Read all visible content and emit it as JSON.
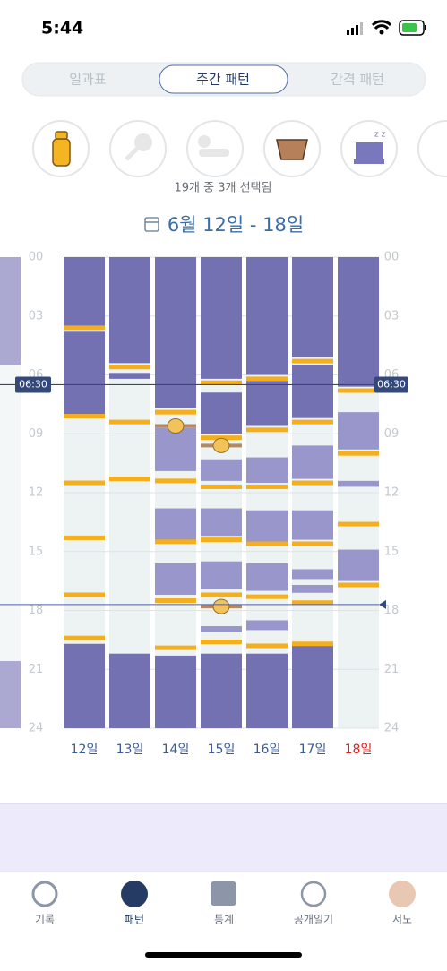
{
  "status_bar": {
    "time": "5:44"
  },
  "tabs": [
    "일과표",
    "주간 패턴",
    "간격 패턴"
  ],
  "active_tab": 1,
  "selection_text": "19개 중 3개 선택됨",
  "date_range": "6월 12일 - 18일",
  "chart": {
    "ylim": [
      0,
      24
    ],
    "yticks": [
      {
        "value": 0,
        "label": "00"
      },
      {
        "value": 3,
        "label": "03"
      },
      {
        "value": 6,
        "label": "06"
      },
      {
        "value": 9,
        "label": "09"
      },
      {
        "value": 12,
        "label": "12"
      },
      {
        "value": 15,
        "label": "15"
      },
      {
        "value": 18,
        "label": "18"
      },
      {
        "value": 21,
        "label": "21"
      },
      {
        "value": 24,
        "label": "24"
      }
    ],
    "marker": {
      "value": 6.5,
      "label": "06:30"
    },
    "now": 17.7,
    "colors": {
      "night": "#7471b3",
      "nap": "#9896cb",
      "feed": "#f5ae1c",
      "diaper": "#b48a66",
      "column": "#edf2f3"
    },
    "days": [
      {
        "label": "12일",
        "highlight": false,
        "night": [
          [
            0,
            3.5
          ],
          [
            3.8,
            8.0
          ],
          [
            19.7,
            24
          ]
        ],
        "naps": [],
        "feeds": [
          3.6,
          8.1,
          11.5,
          14.3,
          17.2,
          19.4
        ],
        "diapers": []
      },
      {
        "label": "13일",
        "highlight": false,
        "night": [
          [
            0,
            5.4
          ],
          [
            5.9,
            6.2
          ],
          [
            20.2,
            24
          ]
        ],
        "naps": [],
        "feeds": [
          5.6,
          8.4,
          11.3
        ],
        "diapers": []
      },
      {
        "label": "14일",
        "highlight": false,
        "night": [
          [
            0,
            7.7
          ],
          [
            20.3,
            24
          ]
        ],
        "naps": [
          [
            8.7,
            10.9
          ],
          [
            12.8,
            14.6
          ],
          [
            15.6,
            17.2
          ]
        ],
        "feeds": [
          7.9,
          11.4,
          14.5,
          17.5,
          19.9
        ],
        "diapers": [
          8.6
        ]
      },
      {
        "label": "15일",
        "highlight": false,
        "night": [
          [
            0,
            6.2
          ],
          [
            6.9,
            9.0
          ],
          [
            20.2,
            24
          ]
        ],
        "naps": [
          [
            10.3,
            11.4
          ],
          [
            12.8,
            14.2
          ],
          [
            15.5,
            16.9
          ],
          [
            18.8,
            19.1
          ]
        ],
        "feeds": [
          6.4,
          9.2,
          11.7,
          14.4,
          17.2,
          19.6
        ],
        "diapers": [
          9.6,
          17.8
        ]
      },
      {
        "label": "16일",
        "highlight": false,
        "night": [
          [
            0,
            6.0
          ],
          [
            6.3,
            8.6
          ],
          [
            20.2,
            24
          ]
        ],
        "naps": [
          [
            10.2,
            11.5
          ],
          [
            12.9,
            14.5
          ],
          [
            15.6,
            17.0
          ],
          [
            18.5,
            19.0
          ]
        ],
        "feeds": [
          6.2,
          8.8,
          11.7,
          14.6,
          17.3,
          19.8
        ],
        "diapers": []
      },
      {
        "label": "17일",
        "highlight": false,
        "night": [
          [
            0,
            5.1
          ],
          [
            5.5,
            8.2
          ],
          [
            19.8,
            24
          ]
        ],
        "naps": [
          [
            9.6,
            11.3
          ],
          [
            12.9,
            14.4
          ],
          [
            15.9,
            16.4
          ],
          [
            16.7,
            17.1
          ]
        ],
        "feeds": [
          5.3,
          8.4,
          11.5,
          14.6,
          17.6,
          19.7
        ],
        "diapers": []
      },
      {
        "label": "18일",
        "highlight": true,
        "night": [
          [
            0,
            6.6
          ]
        ],
        "naps": [
          [
            7.9,
            9.8
          ],
          [
            11.4,
            11.7
          ],
          [
            14.9,
            16.5
          ]
        ],
        "feeds": [
          6.8,
          10.0,
          13.6,
          16.7
        ],
        "diapers": []
      }
    ]
  },
  "nav": [
    "기록",
    "패턴",
    "통계",
    "공개일기",
    "서노"
  ],
  "active_nav": 1
}
